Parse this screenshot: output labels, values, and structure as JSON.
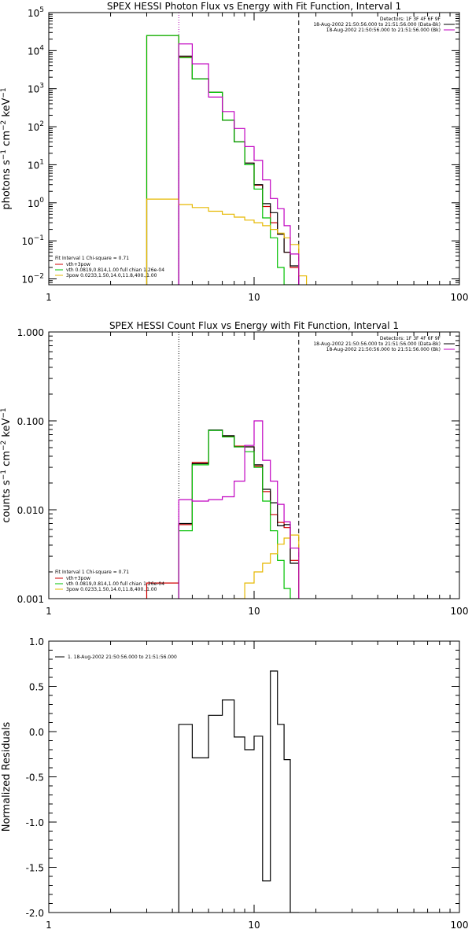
{
  "chart_data": [
    {
      "type": "line",
      "step": true,
      "title": "SPEX HESSI Photon Flux vs Energy with Fit Function, Interval 1",
      "ylabel_parts": [
        "photons s",
        "−1",
        " cm",
        "−2",
        " keV",
        "−1"
      ],
      "xlabel": "",
      "xscale": "log",
      "yscale": "log",
      "xlim": [
        1,
        100
      ],
      "ylim": [
        0.007,
        100000
      ],
      "x_ticks": [
        {
          "v": 1,
          "label": "1"
        },
        {
          "v": 10,
          "label": "10"
        },
        {
          "v": 100,
          "label": "100"
        }
      ],
      "y_ticks": [
        {
          "v": 0.01,
          "base": "10",
          "exp": "−2"
        },
        {
          "v": 0.1,
          "base": "10",
          "exp": "−1"
        },
        {
          "v": 1,
          "base": "10",
          "exp": "0"
        },
        {
          "v": 10,
          "base": "10",
          "exp": "1"
        },
        {
          "v": 100,
          "base": "10",
          "exp": "2"
        },
        {
          "v": 1000,
          "base": "10",
          "exp": "3"
        },
        {
          "v": 10000,
          "base": "10",
          "exp": "4"
        },
        {
          "v": 100000,
          "base": "10",
          "exp": "5"
        }
      ],
      "vlines": [
        {
          "x": 4.3,
          "color": "#b000b0",
          "dash": "1,2"
        },
        {
          "x": 16.5,
          "color": "#000000",
          "dash": "6,4"
        }
      ],
      "info_lines": [
        "Detectors: 1F 3F 4F 6F 9F",
        "18-Aug-2002 21:50:56.000 to 21:51:56.000 (Data-Bk)",
        "18-Aug-2002 21:50:56.000 to 21:51:56.000 (Bk)"
      ],
      "info_colors": [
        "",
        "#000000",
        "#c000c0"
      ],
      "fit_header": "Fit Interval  1    Chi-square = 0.71",
      "legend_items": [
        {
          "label": "vth+3pow",
          "color": "#d00000"
        },
        {
          "label": "vth 0.0819,0.814,1.00   full chian 1.26e-04",
          "color": "#00c000"
        },
        {
          "label": "3pow 0.0233,1.50,14.0,11.8,400.,1.00",
          "color": "#e6b800"
        }
      ],
      "series": [
        {
          "name": "vth+3pow",
          "color": "#d00000",
          "bins": [
            3,
            4.3,
            5,
            6,
            7,
            8,
            9,
            10,
            11,
            12,
            13,
            14,
            15,
            16.5
          ],
          "values": [
            25000,
            7000,
            1800,
            800,
            150,
            40,
            11,
            2.9,
            0.8,
            0.3,
            0.15,
            0.05,
            0.02
          ]
        },
        {
          "name": "Data-Bk",
          "color": "#000000",
          "bins": [
            4.3,
            5,
            6,
            7,
            8,
            9,
            10,
            11,
            12,
            13,
            14,
            15,
            16.5
          ],
          "values": [
            7200,
            1800,
            800,
            150,
            40,
            11,
            3,
            0.95,
            0.55,
            0.15,
            0.05,
            0.022
          ]
        },
        {
          "name": "vth",
          "color": "#00c000",
          "bins": [
            3,
            4.3,
            5,
            6,
            7,
            8,
            9,
            10,
            11,
            12,
            13,
            14,
            15,
            16.5
          ],
          "values": [
            25000,
            6500,
            1800,
            800,
            150,
            40,
            10,
            2.3,
            0.4,
            0.12,
            0.02,
            0.007,
            0.007
          ]
        },
        {
          "name": "3pow",
          "color": "#e6b800",
          "bins": [
            3,
            4.3,
            5,
            6,
            7,
            8,
            9,
            10,
            11,
            12,
            13,
            14,
            15,
            16.5,
            18
          ],
          "values": [
            1.25,
            0.9,
            0.75,
            0.6,
            0.5,
            0.42,
            0.35,
            0.3,
            0.25,
            0.2,
            0.16,
            0.12,
            0.08,
            0.012
          ]
        },
        {
          "name": "Bk",
          "color": "#c000c0",
          "bins": [
            4.3,
            5,
            6,
            7,
            8,
            9,
            10,
            11,
            12,
            13,
            14,
            15,
            16.5
          ],
          "values": [
            15000,
            4500,
            600,
            250,
            90,
            30,
            13,
            4,
            1.3,
            0.7,
            0.25,
            0.045
          ]
        }
      ]
    },
    {
      "type": "line",
      "step": true,
      "title": "SPEX HESSI Count Flux vs Energy with Fit Function, Interval 1",
      "ylabel_parts": [
        "counts s",
        "−1",
        " cm",
        "−2",
        " keV",
        "−1"
      ],
      "xlabel": "",
      "xscale": "log",
      "yscale": "log",
      "xlim": [
        1,
        100
      ],
      "ylim": [
        0.001,
        1.0
      ],
      "x_ticks": [
        {
          "v": 1,
          "label": "1"
        },
        {
          "v": 10,
          "label": "10"
        },
        {
          "v": 100,
          "label": "100"
        }
      ],
      "y_ticks": [
        {
          "v": 0.001,
          "label": "0.001"
        },
        {
          "v": 0.01,
          "label": "0.010"
        },
        {
          "v": 0.1,
          "label": "0.100"
        },
        {
          "v": 1.0,
          "label": "1.000"
        }
      ],
      "vlines": [
        {
          "x": 4.3,
          "color": "#000000",
          "dash": "1,2"
        },
        {
          "x": 16.5,
          "color": "#000000",
          "dash": "6,4"
        }
      ],
      "info_lines": [
        "Detectors: 1F 3F 4F 6F 9F",
        "18-Aug-2002 21:50:56.000 to 21:51:56.000 (Data-Bk)",
        "18-Aug-2002 21:50:56.000 to 21:51:56.000 (Bk)"
      ],
      "info_colors": [
        "",
        "#000000",
        "#c000c0"
      ],
      "fit_header": "Fit Interval  1    Chi-square = 0.71",
      "legend_items": [
        {
          "label": "vth+3pow",
          "color": "#d00000"
        },
        {
          "label": "vth 0.0819,0.814,1.00   full chian 1.26e-04",
          "color": "#00c000"
        },
        {
          "label": "3pow 0.0233,1.50,14.0,11.8,400.,1.00",
          "color": "#e6b800"
        }
      ],
      "series": [
        {
          "name": "vth+3pow",
          "color": "#d00000",
          "bins": [
            3,
            4.3,
            5,
            6,
            7,
            8,
            9,
            10,
            11,
            12,
            13,
            14,
            15,
            16.5
          ],
          "values": [
            0.0015,
            0.0068,
            0.034,
            0.079,
            0.067,
            0.052,
            0.051,
            0.031,
            0.016,
            0.0088,
            0.0072,
            0.0063,
            0.0027
          ]
        },
        {
          "name": "Data-Bk",
          "color": "#000000",
          "bins": [
            4.3,
            5,
            6,
            7,
            8,
            9,
            10,
            11,
            12,
            13,
            14,
            15,
            16.5
          ],
          "values": [
            0.007,
            0.033,
            0.079,
            0.068,
            0.051,
            0.051,
            0.032,
            0.017,
            0.012,
            0.0066,
            0.0068,
            0.0025
          ]
        },
        {
          "name": "vth",
          "color": "#00c000",
          "bins": [
            4.3,
            5,
            6,
            7,
            8,
            9,
            10,
            11,
            12,
            13,
            14,
            15,
            16.5
          ],
          "values": [
            0.0058,
            0.032,
            0.078,
            0.066,
            0.051,
            0.045,
            0.03,
            0.0125,
            0.0058,
            0.0027,
            0.0013,
            0.001
          ]
        },
        {
          "name": "3pow",
          "color": "#e6b800",
          "bins": [
            8,
            9,
            10,
            11,
            12,
            13,
            14,
            15,
            16.5
          ],
          "values": [
            0.001,
            0.0015,
            0.002,
            0.0025,
            0.0032,
            0.0041,
            0.0048,
            0.0052
          ]
        },
        {
          "name": "Bk",
          "color": "#c000c0",
          "bins": [
            4.3,
            5,
            6,
            7,
            8,
            9,
            10,
            11,
            12,
            13,
            14,
            15,
            16.5
          ],
          "values": [
            0.013,
            0.0125,
            0.013,
            0.014,
            0.021,
            0.053,
            0.1,
            0.036,
            0.021,
            0.0115,
            0.0073,
            0.0037
          ]
        }
      ]
    },
    {
      "type": "line",
      "step": true,
      "title": "",
      "ylabel": "Normalized Residuals",
      "xlabel": "",
      "xscale": "log",
      "yscale": "linear",
      "xlim": [
        1,
        100
      ],
      "ylim": [
        -2.0,
        1.0
      ],
      "x_ticks": [
        {
          "v": 1,
          "label": "1"
        },
        {
          "v": 10,
          "label": "10"
        },
        {
          "v": 100,
          "label": "100"
        }
      ],
      "y_ticks": [
        {
          "v": 1.0,
          "label": "1.0"
        },
        {
          "v": 0.5,
          "label": "0.5"
        },
        {
          "v": 0.0,
          "label": "0.0"
        },
        {
          "v": -0.5,
          "label": "-0.5"
        },
        {
          "v": -1.0,
          "label": "-1.0"
        },
        {
          "v": -1.5,
          "label": "-1.5"
        },
        {
          "v": -2.0,
          "label": "-2.0"
        }
      ],
      "legend_items": [
        {
          "label": "1. 18-Aug-2002 21:50:56.000 to 21:51:56.000",
          "color": "#000000"
        }
      ],
      "series": [
        {
          "name": "1. 18-Aug-2002 21:50:56.000 to 21:51:56.000",
          "color": "#000000",
          "bins": [
            4.3,
            5,
            6,
            7,
            8,
            9,
            10,
            11,
            12,
            13,
            14,
            15,
            16.5
          ],
          "values": [
            0.08,
            -0.29,
            0.18,
            0.35,
            -0.06,
            -0.2,
            -0.05,
            -1.65,
            0.67,
            0.08,
            -0.31,
            -2.0
          ]
        }
      ]
    }
  ]
}
